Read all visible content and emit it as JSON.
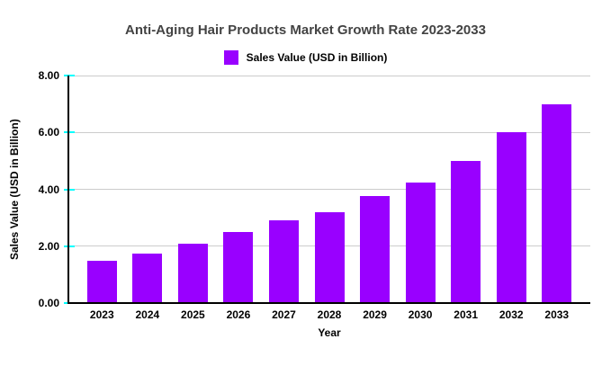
{
  "chart_data": {
    "type": "bar",
    "title": "Anti-Aging Hair Products Market Growth Rate 2023-2033",
    "legend": "Sales Value (USD in Billion)",
    "xlabel": "Year",
    "ylabel": "Sales Value (USD in Billion)",
    "categories": [
      "2023",
      "2024",
      "2025",
      "2026",
      "2027",
      "2028",
      "2029",
      "2030",
      "2031",
      "2032",
      "2033"
    ],
    "values": [
      1.5,
      1.75,
      2.1,
      2.5,
      2.9,
      3.2,
      3.75,
      4.25,
      5.0,
      6.0,
      7.0
    ],
    "ylim": [
      0,
      8
    ],
    "ytick_labels": [
      "0.00",
      "2.00",
      "4.00",
      "6.00",
      "8.00"
    ],
    "grid": true,
    "legend_position": "top",
    "colors": {
      "bar": "#9900ff",
      "gridline": "#cccccc",
      "axis": "#000000",
      "tick_mark": "#00ffff",
      "title_text": "#434343",
      "label_text": "#000000",
      "background": "#ffffff"
    }
  }
}
